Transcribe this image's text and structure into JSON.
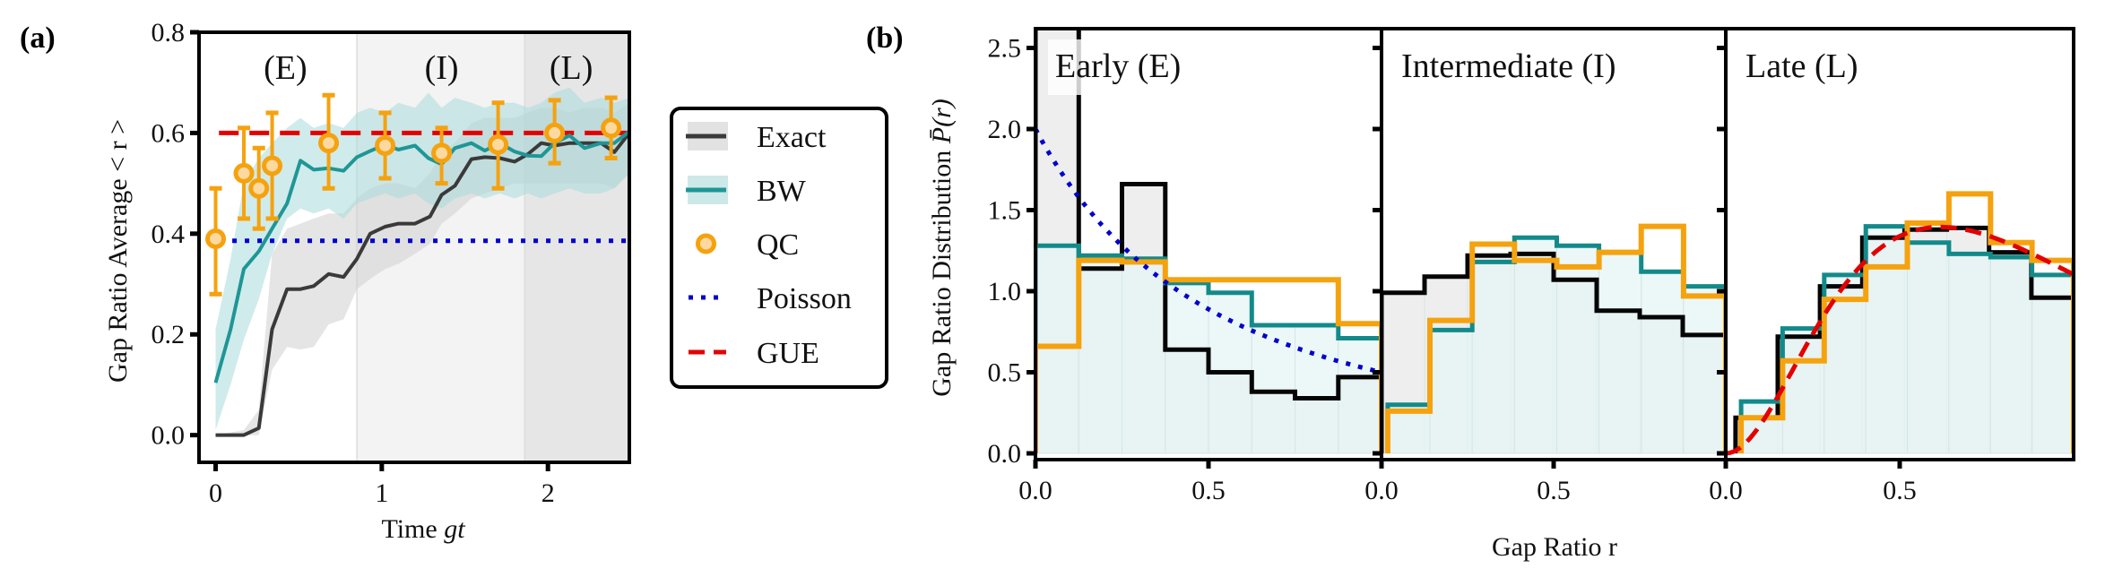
{
  "figure": {
    "panel_a_tag": "(a)",
    "panel_b_tag": "(b)"
  },
  "colors": {
    "exact": "#3a3a3a",
    "exact_band": "#cfcfcf",
    "bw": "#1f9696",
    "bw_band": "#a9dadb",
    "qc": "#f5a20f",
    "qc_fill": "#fcd9a0",
    "poisson": "#0000cc",
    "gue": "#e30000",
    "region_I": "#f3f3f3",
    "region_L": "#e6e6e6",
    "hist_exact_fill": "#ececec",
    "hist_bw_fill": "#e6f4f4"
  },
  "chart_data": [
    {
      "type": "line",
      "title": "",
      "xlabel": "Time gt",
      "ylabel": "Gap Ratio Average < r >",
      "xlim": [
        -0.1,
        2.49
      ],
      "ylim": [
        -0.054,
        0.8
      ],
      "xticks": [
        0,
        1,
        2
      ],
      "xtick_labels": [
        "0",
        "1",
        "2"
      ],
      "yticks": [
        0.0,
        0.2,
        0.4,
        0.6,
        0.8
      ],
      "ytick_labels": [
        "0.0",
        "0.2",
        "0.4",
        "0.6",
        "0.8"
      ],
      "grid": false,
      "regions": [
        {
          "label": "(E)",
          "x": [
            -0.1,
            0.85
          ],
          "label_x": 0.42
        },
        {
          "label": "(I)",
          "x": [
            0.85,
            1.86
          ],
          "label_x": 1.36
        },
        {
          "label": "(L)",
          "x": [
            1.86,
            2.49
          ],
          "label_x": 2.14
        }
      ],
      "series": [
        {
          "name": "Exact",
          "kind": "line_band",
          "x": [
            0,
            0.17,
            0.26,
            0.34,
            0.43,
            0.51,
            0.59,
            0.68,
            0.77,
            0.85,
            0.93,
            1.02,
            1.1,
            1.2,
            1.29,
            1.36,
            1.44,
            1.54,
            1.62,
            1.71,
            1.8,
            1.88,
            1.96,
            2.04,
            2.13,
            2.22,
            2.32,
            2.4,
            2.49
          ],
          "y": [
            0.0,
            0.0,
            0.014,
            0.21,
            0.29,
            0.29,
            0.296,
            0.32,
            0.314,
            0.35,
            0.4,
            0.414,
            0.42,
            0.42,
            0.434,
            0.477,
            0.495,
            0.548,
            0.552,
            0.55,
            0.543,
            0.558,
            0.58,
            0.575,
            0.58,
            0.58,
            0.58,
            0.562,
            0.6
          ],
          "lower": [
            0.0,
            0.0,
            0.0,
            0.13,
            0.175,
            0.17,
            0.175,
            0.22,
            0.23,
            0.29,
            0.31,
            0.33,
            0.34,
            0.36,
            0.38,
            0.42,
            0.44,
            0.47,
            0.48,
            0.49,
            0.5,
            0.5,
            0.5,
            0.5,
            0.5,
            0.5,
            0.5,
            0.49,
            0.52
          ],
          "upper": [
            0.0,
            0.01,
            0.05,
            0.36,
            0.41,
            0.42,
            0.43,
            0.44,
            0.44,
            0.47,
            0.49,
            0.5,
            0.5,
            0.49,
            0.52,
            0.56,
            0.58,
            0.62,
            0.63,
            0.63,
            0.63,
            0.64,
            0.65,
            0.65,
            0.64,
            0.65,
            0.65,
            0.64,
            0.66
          ]
        },
        {
          "name": "BW",
          "kind": "line_band",
          "x": [
            0,
            0.09,
            0.17,
            0.26,
            0.34,
            0.43,
            0.51,
            0.59,
            0.68,
            0.77,
            0.85,
            0.93,
            1.02,
            1.1,
            1.2,
            1.28,
            1.36,
            1.44,
            1.54,
            1.62,
            1.71,
            1.8,
            1.88,
            1.96,
            2.04,
            2.13,
            2.22,
            2.32,
            2.4,
            2.49
          ],
          "y": [
            0.104,
            0.21,
            0.33,
            0.365,
            0.41,
            0.46,
            0.545,
            0.527,
            0.53,
            0.525,
            0.552,
            0.564,
            0.577,
            0.567,
            0.575,
            0.55,
            0.538,
            0.57,
            0.58,
            0.565,
            0.58,
            0.563,
            0.555,
            0.554,
            0.58,
            0.595,
            0.57,
            0.58,
            0.58,
            0.603
          ],
          "lower": [
            0.01,
            0.1,
            0.19,
            0.27,
            0.36,
            0.43,
            0.45,
            0.44,
            0.45,
            0.43,
            0.46,
            0.47,
            0.48,
            0.47,
            0.48,
            0.46,
            0.45,
            0.47,
            0.48,
            0.47,
            0.48,
            0.47,
            0.48,
            0.47,
            0.48,
            0.49,
            0.48,
            0.48,
            0.49,
            0.52
          ],
          "upper": [
            0.21,
            0.35,
            0.5,
            0.55,
            0.58,
            0.61,
            0.63,
            0.61,
            0.62,
            0.61,
            0.64,
            0.65,
            0.64,
            0.66,
            0.65,
            0.68,
            0.65,
            0.67,
            0.66,
            0.65,
            0.66,
            0.66,
            0.65,
            0.66,
            0.68,
            0.69,
            0.66,
            0.67,
            0.66,
            0.67
          ]
        },
        {
          "name": "QC",
          "kind": "errorbar",
          "x": [
            0.0,
            0.17,
            0.26,
            0.34,
            0.68,
            1.02,
            1.36,
            1.7,
            2.04,
            2.38
          ],
          "y": [
            0.39,
            0.52,
            0.49,
            0.535,
            0.58,
            0.575,
            0.56,
            0.577,
            0.6,
            0.61
          ],
          "err_low": [
            0.28,
            0.43,
            0.41,
            0.43,
            0.49,
            0.51,
            0.5,
            0.49,
            0.54,
            0.55
          ],
          "err_high": [
            0.49,
            0.61,
            0.57,
            0.64,
            0.675,
            0.64,
            0.61,
            0.66,
            0.665,
            0.67
          ]
        },
        {
          "name": "Poisson",
          "kind": "hline",
          "value": 0.386,
          "x_range": [
            0.1,
            2.49
          ]
        },
        {
          "name": "GUE",
          "kind": "hline",
          "value": 0.6,
          "x_range": [
            0.02,
            2.49
          ]
        }
      ],
      "legend": {
        "placement": "right-outside",
        "entries": [
          "Exact",
          "BW",
          "QC",
          "Poisson",
          "GUE"
        ]
      }
    },
    {
      "type": "bar",
      "subtype": "step-histogram",
      "ylabel": "Gap Ratio Distribution P̄(r)",
      "xlabel": "Gap Ratio r",
      "ylim": [
        -0.04,
        2.62
      ],
      "xlim": [
        0,
        1.0
      ],
      "yticks": [
        0.0,
        0.5,
        1.0,
        1.5,
        2.0,
        2.5
      ],
      "ytick_labels": [
        "0.0",
        "0.5",
        "1.0",
        "1.5",
        "2.0",
        "2.5"
      ],
      "xticks": [
        0.0,
        0.5
      ],
      "xtick_labels": [
        "0.0",
        "0.5"
      ],
      "bins": 8,
      "panels": [
        {
          "title": "Early (E)",
          "exact": {
            "start": 0.0,
            "values": [
              2.9,
              1.14,
              1.66,
              0.64,
              0.5,
              0.38,
              0.34,
              0.47
            ]
          },
          "bw": {
            "start": 0.0,
            "values": [
              1.28,
              1.22,
              1.2,
              1.05,
              0.99,
              0.79,
              0.79,
              0.71
            ]
          },
          "qc": {
            "start": 0.0,
            "values": [
              0.66,
              1.19,
              1.18,
              1.07,
              1.07,
              1.07,
              1.07,
              0.8
            ]
          },
          "reference": "Poisson"
        },
        {
          "title": "Intermediate (I)",
          "exact": {
            "start": 0.0,
            "values": [
              0.99,
              1.09,
              1.22,
              1.23,
              1.07,
              0.88,
              0.84,
              0.73
            ]
          },
          "bw": {
            "start": 0.018,
            "values": [
              0.3,
              0.76,
              1.18,
              1.33,
              1.28,
              1.24,
              1.12,
              1.03
            ]
          },
          "qc": {
            "start": 0.018,
            "values": [
              0.26,
              0.82,
              1.29,
              1.19,
              1.15,
              1.24,
              1.4,
              0.97
            ]
          },
          "reference": "none"
        },
        {
          "title": "Late (L)",
          "exact": {
            "start": 0.028,
            "values": [
              0.22,
              0.72,
              1.03,
              1.33,
              1.38,
              1.39,
              1.24,
              0.96
            ]
          },
          "bw": {
            "start": 0.044,
            "values": [
              0.32,
              0.77,
              1.1,
              1.4,
              1.3,
              1.23,
              1.21,
              1.1
            ]
          },
          "qc": {
            "start": 0.044,
            "values": [
              0.22,
              0.57,
              0.95,
              1.15,
              1.42,
              1.6,
              1.3,
              1.19
            ]
          },
          "reference": "GUE"
        }
      ],
      "reference_curves": {
        "Poisson": "P(r) = 2/(1+r)^2",
        "GUE": "P(r) = 2*(81*sqrt(3)/(4*pi))*(r+r^2)^2/(1+r+r^2)^4"
      }
    }
  ]
}
